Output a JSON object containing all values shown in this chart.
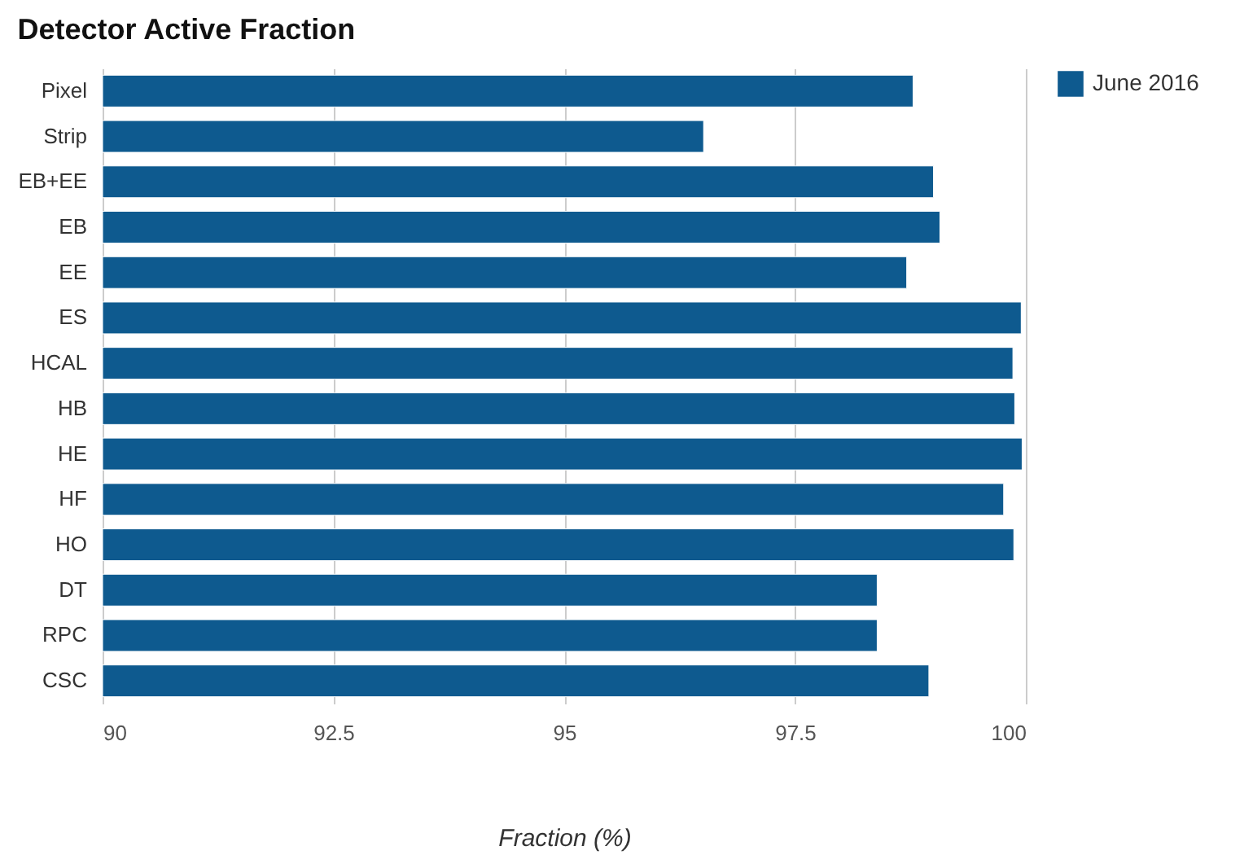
{
  "chart_data": {
    "type": "bar",
    "orientation": "horizontal",
    "title": "Detector Active Fraction",
    "xlabel": "Fraction (%)",
    "categories": [
      "Pixel",
      "Strip",
      "EB+EE",
      "EB",
      "EE",
      "ES",
      "HCAL",
      "HB",
      "HE",
      "HF",
      "HO",
      "DT",
      "RPC",
      "CSC"
    ],
    "series": [
      {
        "name": "June 2016",
        "color": "#0e5a8f",
        "values": [
          98.78,
          96.51,
          99.0,
          99.07,
          98.71,
          99.95,
          99.86,
          99.88,
          99.96,
          99.76,
          99.87,
          98.39,
          98.39,
          98.95
        ]
      }
    ],
    "xlim": [
      90,
      100
    ],
    "xticks": [
      90,
      92.5,
      95,
      97.5,
      100
    ],
    "grid": "x",
    "legend": "top right"
  }
}
